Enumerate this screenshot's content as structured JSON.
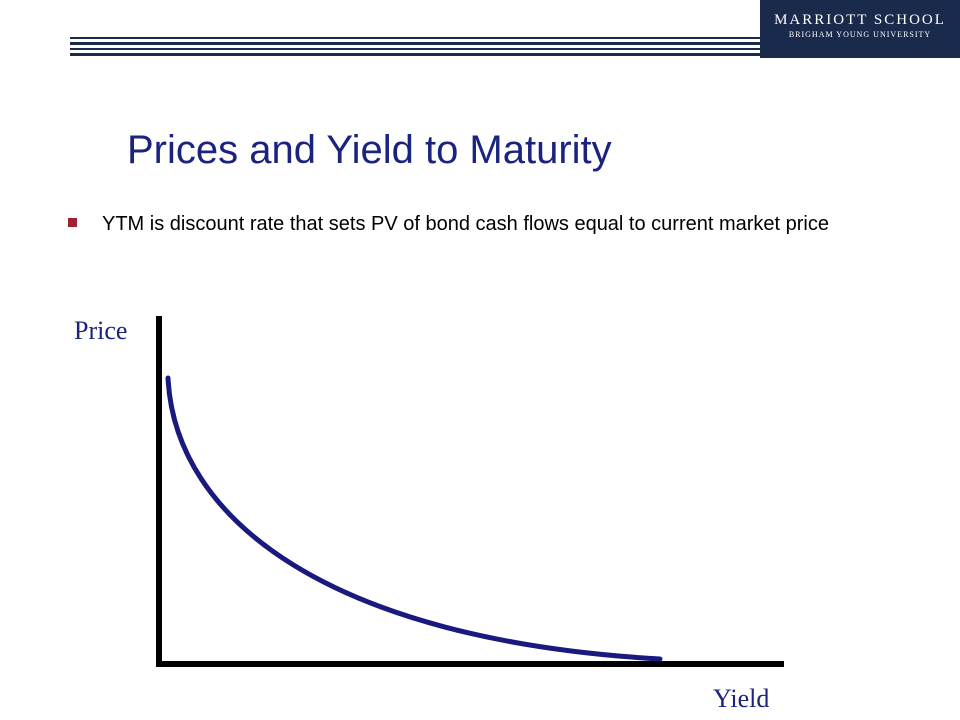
{
  "header": {
    "logo_line1": "MARRIOTT SCHOOL",
    "logo_line2": "BRIGHAM YOUNG UNIVERSITY"
  },
  "slide": {
    "title": "Prices and Yield to Maturity",
    "bullets": [
      "YTM is discount rate that sets PV of bond cash flows equal to current market price"
    ]
  },
  "diagram": {
    "y_axis_label": "Price",
    "x_axis_label": "Yield",
    "curve_shape": "convex-decreasing"
  },
  "colors": {
    "title": "#1a237e",
    "curve": "#1a1a7e",
    "axis": "#000000",
    "bullet": "#a31f34",
    "logo_bg": "#1a2a4c",
    "header_rule": "#1a2a4c"
  }
}
